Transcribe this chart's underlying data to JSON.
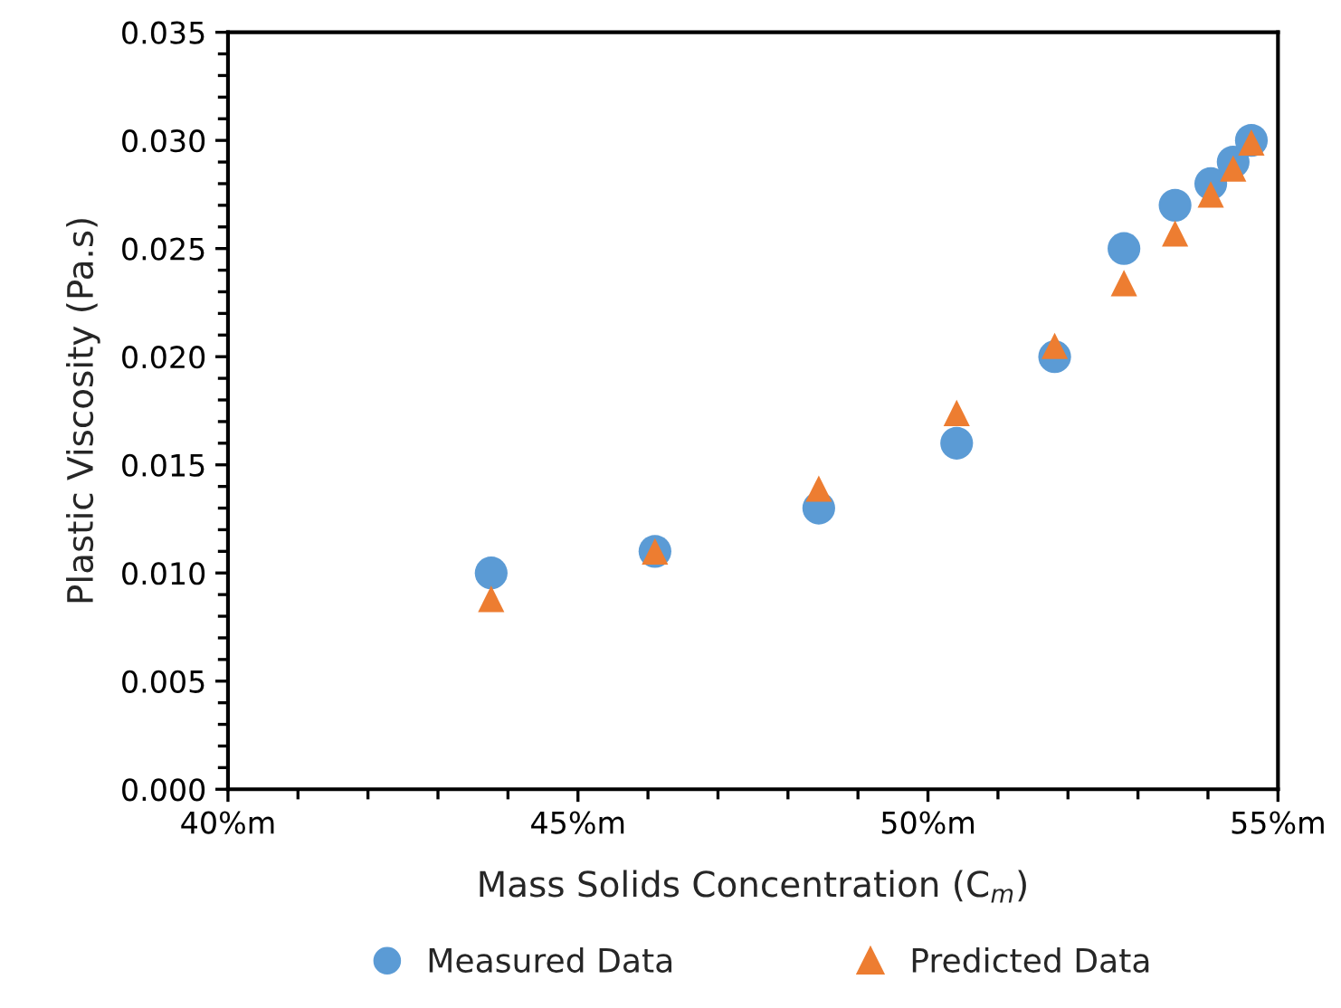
{
  "chart_data": {
    "type": "scatter",
    "xlabel": "Mass Solids Concentration (C$_{m}$)",
    "ylabel": "Plastic Viscosity (Pa.s)",
    "x": [
      43.76,
      46.1,
      48.44,
      50.41,
      51.81,
      52.8,
      53.53,
      54.04,
      54.36,
      54.62
    ],
    "series": [
      {
        "name": "Measured Data",
        "color": "#5b9bd5",
        "marker": "circle",
        "values": [
          0.01,
          0.011,
          0.013,
          0.016,
          0.02,
          0.025,
          0.027,
          0.028,
          0.029,
          0.03
        ]
      },
      {
        "name": "Predicted Data",
        "color": "#ed7d31",
        "marker": "triangle",
        "values": [
          0.0088,
          0.011,
          0.0139,
          0.0174,
          0.0205,
          0.0234,
          0.0257,
          0.0275,
          0.0287,
          0.0299
        ]
      }
    ],
    "xlim": [
      40,
      55
    ],
    "xticks": [
      {
        "value": 40,
        "label": "40%m"
      },
      {
        "value": 45,
        "label": "45%m"
      },
      {
        "value": 50,
        "label": "50%m"
      },
      {
        "value": 55,
        "label": "55%m"
      }
    ],
    "ylim": [
      0,
      0.035
    ],
    "yticks": [
      {
        "value": 0,
        "label": "0.000"
      },
      {
        "value": 0.005,
        "label": "0.005"
      },
      {
        "value": 0.01,
        "label": "0.010"
      },
      {
        "value": 0.015,
        "label": "0.015"
      },
      {
        "value": 0.02,
        "label": "0.020"
      },
      {
        "value": 0.025,
        "label": "0.025"
      },
      {
        "value": 0.03,
        "label": "0.030"
      },
      {
        "value": 0.035,
        "label": "0.035"
      }
    ],
    "grid": false,
    "legend": "bottom"
  }
}
